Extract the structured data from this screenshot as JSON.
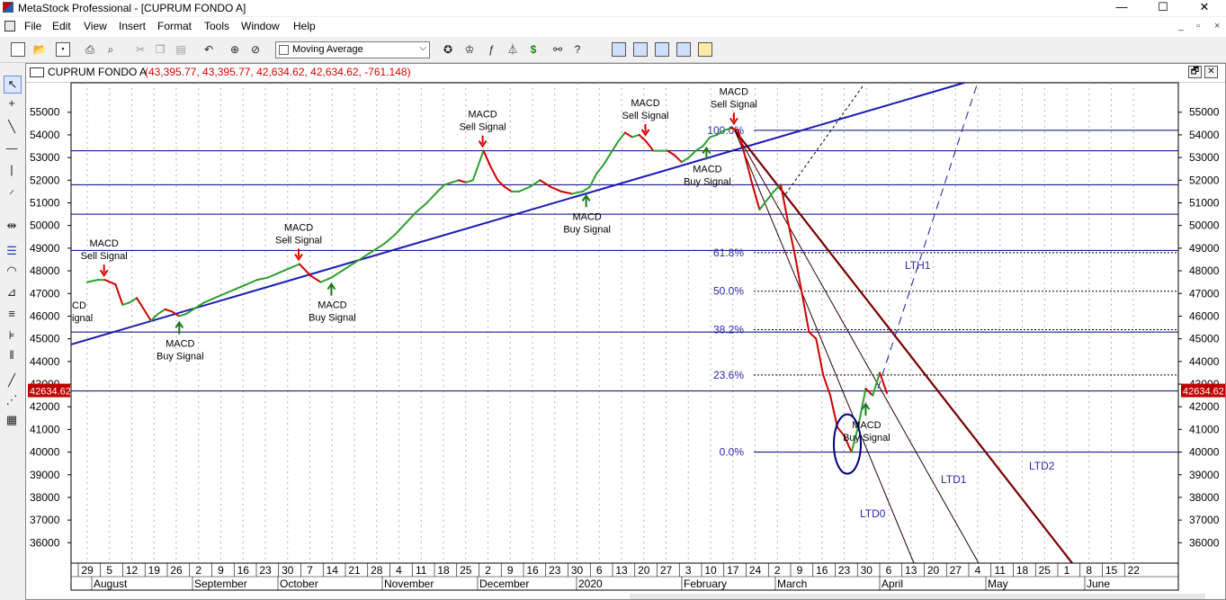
{
  "window": {
    "title": "MetaStock Professional - [CUPRUM FONDO A]",
    "controls": {
      "minimize": "—",
      "maximize": "☐",
      "close": "✕"
    }
  },
  "menu": [
    "File",
    "Edit",
    "View",
    "Insert",
    "Format",
    "Tools",
    "Window",
    "Help"
  ],
  "mdi_controls": {
    "minimize": "_",
    "restore": "▫",
    "close": "×"
  },
  "toolbar": {
    "indicator_select": "Moving Average",
    "buttons": [
      "new-icon",
      "open-icon",
      "save-icon",
      "print-icon",
      "print-preview-icon",
      "cut-icon",
      "copy-icon",
      "paste-icon",
      "undo-icon",
      "crosshair-icon",
      "zoom-icon",
      "expert-icon",
      "indicator-builder-icon",
      "explorer-icon",
      "system-tester-icon",
      "downloader-icon",
      "search-icon",
      "help-icon",
      "layout-icons"
    ]
  },
  "chart_window": {
    "name": "CUPRUM FONDO A",
    "values": "(43,395.77, 43,395.77, 42,634.62, 42,634.62, -761.148)",
    "restore_label": "🗗",
    "close_label": "✕"
  },
  "chart_data": {
    "type": "line",
    "security": "CUPRUM FONDO A",
    "y_axis": {
      "ticks": [
        55000,
        54000,
        53000,
        52000,
        51000,
        50000,
        49000,
        48000,
        47000,
        46000,
        45000,
        44000,
        43000,
        42000,
        41000,
        40000,
        39000,
        38000,
        37000,
        36000
      ],
      "ylim": [
        35100,
        56300
      ]
    },
    "last_value_label": "42634.62",
    "x_axis": {
      "day_ticks": [
        "29",
        "5",
        "12",
        "19",
        "26",
        "2",
        "9",
        "16",
        "23",
        "30",
        "7",
        "14",
        "21",
        "28",
        "4",
        "11",
        "18",
        "25",
        "2",
        "9",
        "16",
        "23",
        "30",
        "6",
        "13",
        "20",
        "27",
        "3",
        "10",
        "17",
        "24",
        "2",
        "9",
        "16",
        "23",
        "30",
        "6",
        "13",
        "20",
        "27",
        "4",
        "11",
        "18",
        "25",
        "1",
        "8",
        "15",
        "22"
      ],
      "months": [
        "August",
        "September",
        "October",
        "November",
        "December",
        "2020",
        "February",
        "March",
        "April",
        "May",
        "June"
      ]
    },
    "series": [
      {
        "color_up": "#2ca02c",
        "color_down": "#d00000",
        "points": [
          [
            0,
            47500
          ],
          [
            3,
            47600
          ],
          [
            5,
            47600
          ],
          [
            8,
            47400
          ],
          [
            10,
            46500
          ],
          [
            12,
            46600
          ],
          [
            14,
            46800
          ],
          [
            16,
            46300
          ],
          [
            18,
            45800
          ],
          [
            20,
            46100
          ],
          [
            22,
            46300
          ],
          [
            24,
            46200
          ],
          [
            26,
            46000
          ],
          [
            28,
            46100
          ],
          [
            30,
            46300
          ],
          [
            33,
            46600
          ],
          [
            36,
            46800
          ],
          [
            39,
            47000
          ],
          [
            42,
            47200
          ],
          [
            45,
            47400
          ],
          [
            48,
            47600
          ],
          [
            51,
            47700
          ],
          [
            54,
            47900
          ],
          [
            57,
            48100
          ],
          [
            60,
            48300
          ],
          [
            63,
            47800
          ],
          [
            66,
            47500
          ],
          [
            69,
            47700
          ],
          [
            72,
            48000
          ],
          [
            75,
            48300
          ],
          [
            78,
            48600
          ],
          [
            81,
            48900
          ],
          [
            84,
            49200
          ],
          [
            87,
            49600
          ],
          [
            90,
            50100
          ],
          [
            93,
            50600
          ],
          [
            96,
            51000
          ],
          [
            99,
            51500
          ],
          [
            101,
            51800
          ],
          [
            103,
            51900
          ],
          [
            105,
            52000
          ],
          [
            107,
            51900
          ],
          [
            109,
            52000
          ],
          [
            112,
            53300
          ],
          [
            114,
            52600
          ],
          [
            116,
            52000
          ],
          [
            118,
            51700
          ],
          [
            120,
            51500
          ],
          [
            122,
            51500
          ],
          [
            125,
            51700
          ],
          [
            128,
            52000
          ],
          [
            131,
            51700
          ],
          [
            134,
            51500
          ],
          [
            137,
            51400
          ],
          [
            140,
            51500
          ],
          [
            142,
            51700
          ],
          [
            144,
            52300
          ],
          [
            146,
            52700
          ],
          [
            148,
            53200
          ],
          [
            150,
            53700
          ],
          [
            152,
            54100
          ],
          [
            154,
            53900
          ],
          [
            156,
            54000
          ],
          [
            158,
            53700
          ],
          [
            160,
            53300
          ],
          [
            162,
            53300
          ],
          [
            164,
            53300
          ],
          [
            166,
            53100
          ],
          [
            168,
            52800
          ],
          [
            170,
            53000
          ],
          [
            172,
            53300
          ],
          [
            174,
            53500
          ],
          [
            176,
            53900
          ],
          [
            178,
            54000
          ],
          [
            180,
            54200
          ],
          [
            182,
            54300
          ],
          [
            184,
            54200
          ],
          [
            186,
            53000
          ],
          [
            188,
            51800
          ],
          [
            190,
            50700
          ],
          [
            192,
            51100
          ],
          [
            194,
            51500
          ],
          [
            196,
            51800
          ],
          [
            198,
            50200
          ],
          [
            200,
            48700
          ],
          [
            202,
            47000
          ],
          [
            204,
            45300
          ],
          [
            206,
            45000
          ],
          [
            208,
            43400
          ],
          [
            210,
            42500
          ],
          [
            212,
            41100
          ],
          [
            214,
            40700
          ],
          [
            216,
            40000
          ],
          [
            218,
            41200
          ],
          [
            220,
            42800
          ],
          [
            222,
            42500
          ],
          [
            224,
            43500
          ],
          [
            226,
            42600
          ]
        ]
      }
    ],
    "fibonacci": {
      "levels": [
        "100.0%",
        "61.8%",
        "50.0%",
        "38.2%",
        "23.6%",
        "0.0%"
      ],
      "values": [
        54200,
        48800,
        47100,
        45400,
        43400,
        40000
      ]
    },
    "horizontal_lines": [
      54200,
      53300,
      51800,
      50500,
      48900,
      45300,
      42700,
      40000
    ],
    "trendlines": {
      "labels": [
        "LTH1",
        "LTD0",
        "LTD1",
        "LTD2"
      ]
    },
    "signals": [
      {
        "name": "MACD",
        "text": "Sell Signal",
        "type": "sell",
        "x": 5,
        "y": 47600
      },
      {
        "name": "MACD",
        "text": "Buy Signal",
        "type": "buy",
        "x": 26,
        "y": 46000
      },
      {
        "name": "MACD",
        "text": "Sell Signal",
        "type": "sell",
        "x": 60,
        "y": 48300
      },
      {
        "name": "MACD",
        "text": "Buy Signal",
        "type": "buy",
        "x": 69,
        "y": 47700
      },
      {
        "name": "MACD",
        "text": "Sell Signal",
        "type": "sell",
        "x": 112,
        "y": 53300
      },
      {
        "name": "MACD",
        "text": "Buy Signal",
        "type": "buy",
        "x": 141,
        "y": 51600
      },
      {
        "name": "MACD",
        "text": "Sell Signal",
        "type": "sell",
        "x": 158,
        "y": 53800
      },
      {
        "name": "MACD",
        "text": "Buy Signal",
        "type": "buy",
        "x": 175,
        "y": 53700
      },
      {
        "name": "MACD",
        "text": "Sell Signal",
        "type": "sell",
        "x": 183,
        "y": 54300
      },
      {
        "name": "MACD",
        "text": "Buy Signal",
        "type": "buy",
        "x": 220,
        "y": 42400
      }
    ],
    "partial_signal": {
      "line1": "CD",
      "line2": "ignal"
    }
  }
}
